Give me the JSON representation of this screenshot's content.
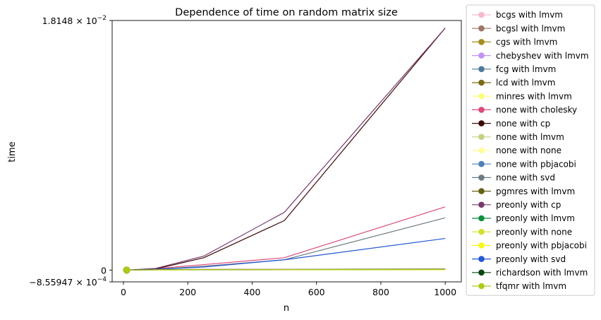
{
  "chart_data": {
    "type": "line",
    "title": "Dependence of time on random matrix size",
    "xlabel": "n",
    "ylabel": "time",
    "xlim": [
      -35,
      1050
    ],
    "ylim": [
      -0.000855947,
      0.018148
    ],
    "xticks": [
      0,
      200,
      400,
      600,
      800,
      1000
    ],
    "xtick_labels": [
      "0",
      "200",
      "400",
      "600",
      "800",
      "1000"
    ],
    "ytick_labels": [
      {
        "value": 0.018148,
        "mantissa": "1.8148",
        "exponent": "−2"
      },
      {
        "value": 0,
        "text": "0"
      },
      {
        "value": -0.000855947,
        "mantissa": "−8.55947",
        "exponent": "−4"
      }
    ],
    "grid": false,
    "legend_position": "outside-right",
    "x": [
      10,
      100,
      250,
      500,
      1000
    ],
    "series": [
      {
        "name": "bcgs with lmvm",
        "color": "#f7b6d2",
        "values": [
          0,
          3e-05,
          5e-05,
          6e-05,
          7e-05
        ]
      },
      {
        "name": "bcgsl with lmvm",
        "color": "#9c7566",
        "values": [
          0,
          3e-05,
          5e-05,
          6e-05,
          8e-05
        ]
      },
      {
        "name": "cgs with lmvm",
        "color": "#a68c1a",
        "values": [
          0,
          2e-05,
          4e-05,
          5e-05,
          6e-05
        ]
      },
      {
        "name": "chebyshev with lmvm",
        "color": "#c291f5",
        "values": [
          0,
          2e-05,
          4e-05,
          5e-05,
          6e-05
        ]
      },
      {
        "name": "fcg with lmvm",
        "color": "#4d7a99",
        "values": [
          0,
          2e-05,
          4e-05,
          4e-05,
          5e-05
        ]
      },
      {
        "name": "lcd with lmvm",
        "color": "#7a6b12",
        "values": [
          0,
          2e-05,
          3e-05,
          4e-05,
          5e-05
        ]
      },
      {
        "name": "minres with lmvm",
        "color": "#fcfc7d",
        "values": [
          0,
          2e-05,
          3e-05,
          4e-05,
          5e-05
        ]
      },
      {
        "name": "none with cholesky",
        "color": "#db4a7a",
        "values": [
          0,
          0.0001,
          0.0004,
          0.0009,
          0.0046
        ]
      },
      {
        "name": "none with cp",
        "color": "#3d0a0a",
        "values": [
          0,
          8e-05,
          0.0009,
          0.0036,
          0.0176
        ]
      },
      {
        "name": "none with lmvm",
        "color": "#c9cf82",
        "values": [
          0,
          2e-05,
          3e-05,
          4e-05,
          5e-05
        ]
      },
      {
        "name": "none with none",
        "color": "#fffc99",
        "values": [
          0,
          1e-05,
          2e-05,
          2e-05,
          3e-05
        ]
      },
      {
        "name": "none with pbjacobi",
        "color": "#4d80b8",
        "values": [
          0,
          2e-05,
          3e-05,
          4e-05,
          5e-05
        ]
      },
      {
        "name": "none with svd",
        "color": "#6b7b85",
        "values": [
          0,
          6e-05,
          0.00028,
          0.00075,
          0.0038
        ]
      },
      {
        "name": "pgmres with lmvm",
        "color": "#666112",
        "values": [
          0,
          2e-05,
          3e-05,
          4e-05,
          5e-05
        ]
      },
      {
        "name": "preonly with cp",
        "color": "#783a6e",
        "values": [
          0,
          0.00012,
          0.00102,
          0.0042,
          0.0176
        ]
      },
      {
        "name": "preonly with lmvm",
        "color": "#0a8f3d",
        "values": [
          0,
          2e-05,
          3e-05,
          4e-05,
          5e-05
        ]
      },
      {
        "name": "preonly with none",
        "color": "#d4e02e",
        "values": [
          0,
          1e-05,
          2e-05,
          2e-05,
          3e-05
        ]
      },
      {
        "name": "preonly with pbjacobi",
        "color": "#f7f71a",
        "values": [
          0,
          1e-05,
          2e-05,
          2e-05,
          3e-05
        ]
      },
      {
        "name": "preonly with svd",
        "color": "#2457d6",
        "values": [
          0,
          5e-05,
          0.00022,
          0.00075,
          0.0023
        ]
      },
      {
        "name": "richardson with lmvm",
        "color": "#0a470f",
        "values": [
          0,
          2e-05,
          3e-05,
          4e-05,
          5e-05
        ]
      },
      {
        "name": "tfqmr with lmvm",
        "color": "#b0c917",
        "values": [
          0,
          2e-05,
          3e-05,
          4e-05,
          5e-05
        ]
      }
    ]
  }
}
